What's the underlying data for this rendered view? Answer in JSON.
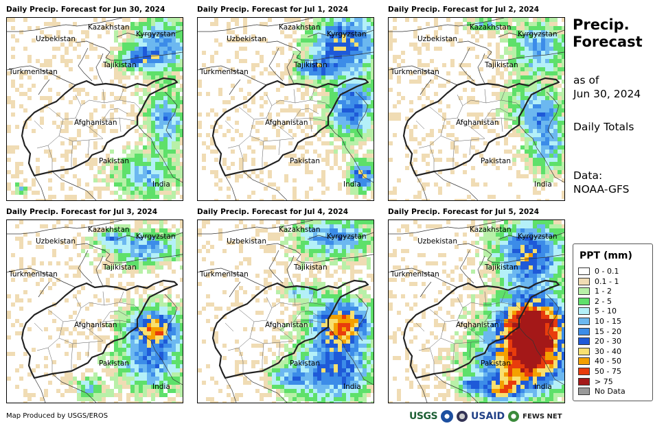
{
  "panels": [
    {
      "title": "Daily Precip. Forecast for Jun 30, 2024",
      "day": 0
    },
    {
      "title": "Daily Precip. Forecast for Jul 1, 2024",
      "day": 1
    },
    {
      "title": "Daily Precip. Forecast for Jul 2, 2024",
      "day": 2
    },
    {
      "title": "Daily Precip. Forecast for Jul 3, 2024",
      "day": 3
    },
    {
      "title": "Daily Precip. Forecast for Jul 4, 2024",
      "day": 4
    },
    {
      "title": "Daily Precip. Forecast for Jul 5, 2024",
      "day": 5
    }
  ],
  "map_labels": {
    "kazakhstan": "Kazakhstan",
    "kyrgyzstan": "Kyrgyzstan",
    "uzbekistan": "Uzbekistan",
    "tajikistan": "Tajikistan",
    "turkmenistan": "Turkmenistan",
    "afghanistan": "Afghanistan",
    "pakistan": "Pakistan",
    "india": "India"
  },
  "sidebar": {
    "title_line1": "Precip.",
    "title_line2": "Forecast",
    "as_of": "as of",
    "date": "Jun 30, 2024",
    "totals": "Daily Totals",
    "data_label": "Data:",
    "data_source": "NOAA-GFS"
  },
  "legend": {
    "title": "PPT (mm)",
    "items": [
      {
        "label": "0 - 0.1",
        "color": "#ffffff"
      },
      {
        "label": "0.1 - 1",
        "color": "#f0dcb4"
      },
      {
        "label": "1 - 2",
        "color": "#b8f0a8"
      },
      {
        "label": "2 - 5",
        "color": "#5ee06a"
      },
      {
        "label": "5 - 10",
        "color": "#b4f0f8"
      },
      {
        "label": "10 - 15",
        "color": "#6cb8f0"
      },
      {
        "label": "15 - 20",
        "color": "#3c8ce8"
      },
      {
        "label": "20 - 30",
        "color": "#1e5ad8"
      },
      {
        "label": "30 - 40",
        "color": "#f8e070"
      },
      {
        "label": "40 - 50",
        "color": "#f4a000"
      },
      {
        "label": "50 - 75",
        "color": "#e83c0c"
      },
      {
        "label": "> 75",
        "color": "#a41818"
      },
      {
        "label": "No Data",
        "color": "#9a9a9a"
      }
    ]
  },
  "footer": {
    "credit": "Map Produced by USGS/EROS"
  },
  "logos": {
    "usgs": "USGS",
    "usaid": "USAID",
    "fews": "FEWS NET"
  }
}
